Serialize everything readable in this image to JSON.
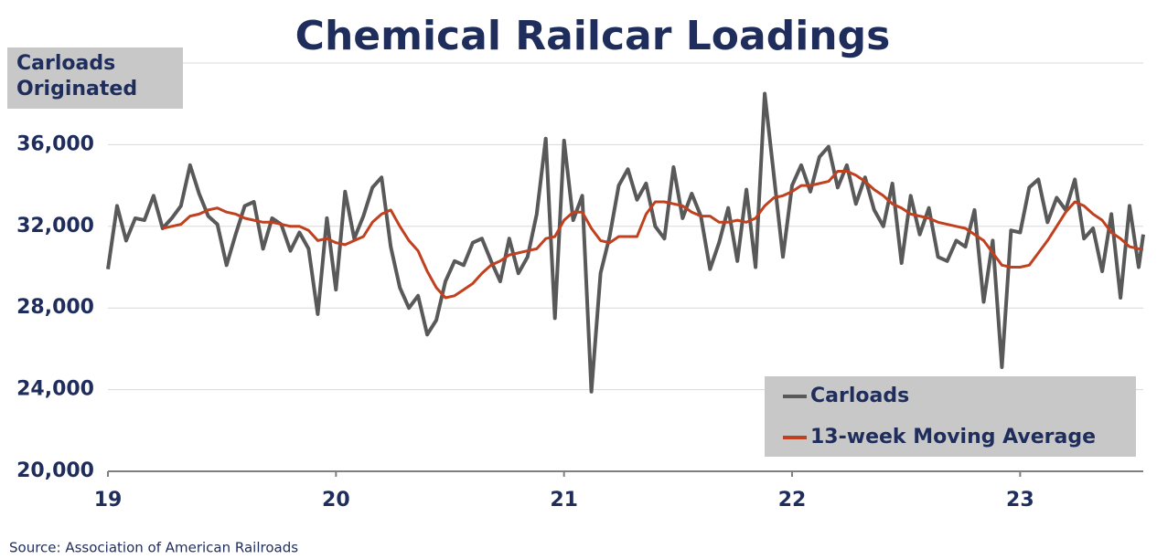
{
  "chart_data": {
    "type": "line",
    "title": "Chemical Railcar Loadings",
    "y_label": "Carloads Originated",
    "source": "Source:  Association of American Railroads",
    "x": [
      19,
      19.04,
      19.08,
      19.12,
      19.16,
      19.2,
      19.24,
      19.28,
      19.32,
      19.36,
      19.4,
      19.44,
      19.48,
      19.52,
      19.56,
      19.6,
      19.64,
      19.68,
      19.72,
      19.76,
      19.8,
      19.84,
      19.88,
      19.92,
      19.96,
      20,
      20.04,
      20.08,
      20.12,
      20.16,
      20.2,
      20.24,
      20.28,
      20.32,
      20.36,
      20.4,
      20.44,
      20.48,
      20.52,
      20.56,
      20.6,
      20.64,
      20.68,
      20.72,
      20.76,
      20.8,
      20.84,
      20.88,
      20.92,
      20.96,
      21,
      21.04,
      21.08,
      21.12,
      21.16,
      21.2,
      21.24,
      21.28,
      21.32,
      21.36,
      21.4,
      21.44,
      21.48,
      21.52,
      21.56,
      21.6,
      21.64,
      21.68,
      21.72,
      21.76,
      21.8,
      21.84,
      21.88,
      21.92,
      21.96,
      22,
      22.04,
      22.08,
      22.12,
      22.16,
      22.2,
      22.24,
      22.28,
      22.32,
      22.36,
      22.4,
      22.44,
      22.48,
      22.52,
      22.56,
      22.6,
      22.64,
      22.68,
      22.72,
      22.76,
      22.8,
      22.84,
      22.88,
      22.92,
      22.96,
      23,
      23.04,
      23.08,
      23.12,
      23.16,
      23.2,
      23.24,
      23.28,
      23.32,
      23.36,
      23.4,
      23.44,
      23.48,
      23.52,
      23.54
    ],
    "series": [
      {
        "name": "Carloads",
        "color": "#595959",
        "values": [
          29900,
          33000,
          31300,
          32400,
          32300,
          33500,
          31900,
          32400,
          33000,
          35000,
          33600,
          32500,
          32100,
          30100,
          31600,
          33000,
          33200,
          30900,
          32400,
          32100,
          30800,
          31700,
          30900,
          27700,
          32400,
          28900,
          33700,
          31400,
          32500,
          33900,
          34400,
          31000,
          29000,
          28000,
          28600,
          26700,
          27400,
          29300,
          30300,
          30100,
          31200,
          31400,
          30300,
          29300,
          31400,
          29700,
          30500,
          32600,
          36300,
          27500,
          36200,
          32300,
          33500,
          23900,
          29700,
          31500,
          34000,
          34800,
          33300,
          34100,
          32000,
          31400,
          34900,
          32400,
          33600,
          32500,
          29900,
          31200,
          32900,
          30300,
          33800,
          30000,
          38500,
          34500,
          30500,
          34000,
          35000,
          33700,
          35400,
          35900,
          33900,
          35000,
          33100,
          34400,
          32800,
          32000,
          34100,
          30200,
          33500,
          31600,
          32900,
          30500,
          30300,
          31300,
          31000,
          32800,
          28300,
          31300,
          25100,
          31800,
          31700,
          33900,
          34300,
          32200,
          33400,
          32800,
          34300,
          31400,
          31900,
          29800,
          32600,
          28500,
          33000,
          30000,
          31600
        ]
      },
      {
        "name": "13-week Moving Average",
        "color": "#c0401f",
        "values": [
          null,
          null,
          null,
          null,
          null,
          null,
          31900,
          32000,
          32100,
          32500,
          32600,
          32800,
          32900,
          32700,
          32600,
          32400,
          32300,
          32200,
          32200,
          32100,
          32000,
          32000,
          31800,
          31300,
          31400,
          31200,
          31100,
          31300,
          31500,
          32200,
          32600,
          32800,
          32000,
          31300,
          30800,
          29800,
          29000,
          28500,
          28600,
          28900,
          29200,
          29700,
          30100,
          30300,
          30600,
          30700,
          30800,
          30900,
          31400,
          31500,
          32300,
          32700,
          32700,
          31900,
          31300,
          31200,
          31500,
          31500,
          31500,
          32600,
          33200,
          33200,
          33100,
          33000,
          32700,
          32500,
          32500,
          32200,
          32200,
          32300,
          32200,
          32400,
          33000,
          33400,
          33500,
          33700,
          34000,
          34000,
          34100,
          34200,
          34700,
          34700,
          34500,
          34200,
          33800,
          33500,
          33100,
          32900,
          32600,
          32500,
          32400,
          32200,
          32100,
          32000,
          31900,
          31600,
          31300,
          30700,
          30100,
          30000,
          30000,
          30100,
          30700,
          31300,
          32000,
          32700,
          33200,
          33000,
          32600,
          32300,
          31700,
          31400,
          31000,
          30900,
          30900
        ]
      }
    ],
    "xlim": [
      19,
      23.54
    ],
    "xticks": [
      19,
      20,
      21,
      22,
      23
    ],
    "ylim": [
      20000,
      40000
    ],
    "yticks": [
      {
        "value": 20000,
        "label": "20,000"
      },
      {
        "value": 24000,
        "label": "24,000"
      },
      {
        "value": 28000,
        "label": "28,000"
      },
      {
        "value": 32000,
        "label": "32,000"
      },
      {
        "value": 36000,
        "label": "36,000"
      }
    ],
    "grid": true,
    "legend": "lower right"
  }
}
